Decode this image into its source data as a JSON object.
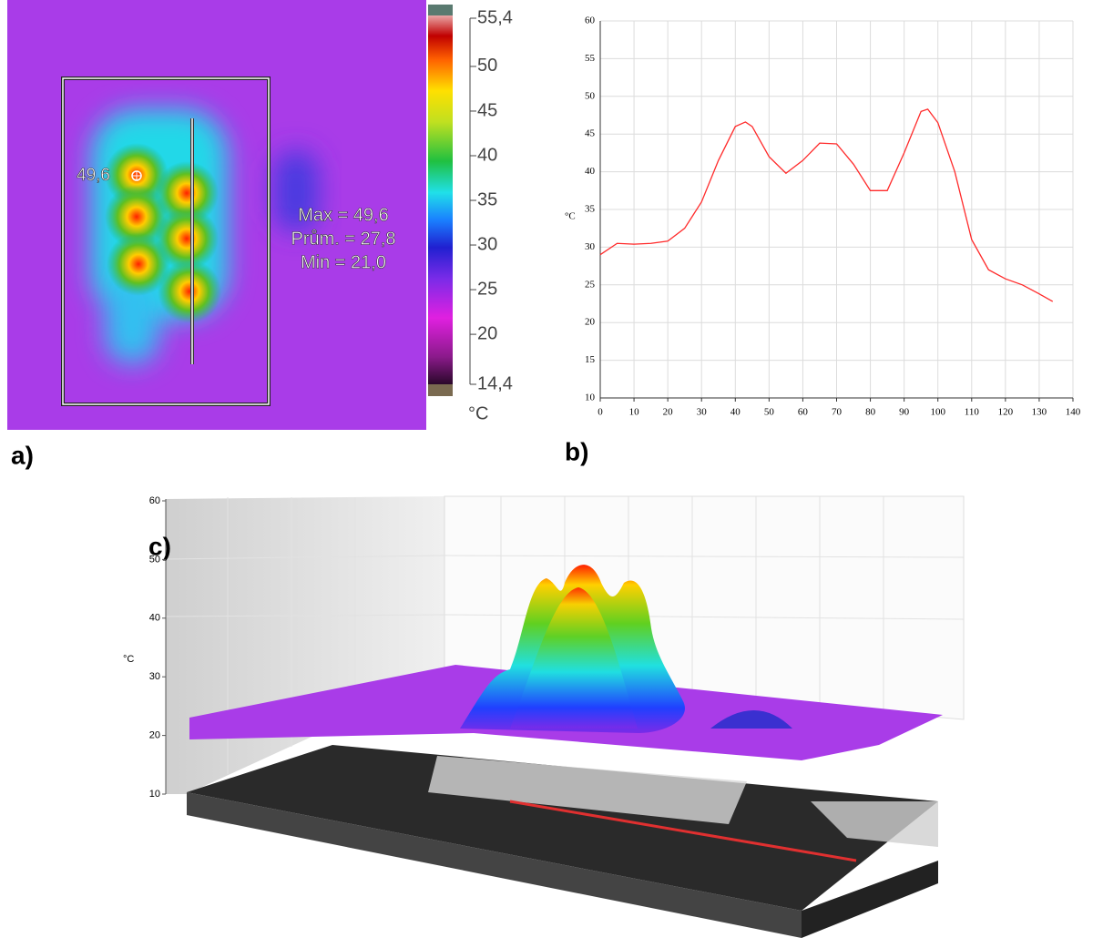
{
  "chart_data": [
    {
      "type": "thermal",
      "panel_label": "a)",
      "colorbar": {
        "lim": [
          14.4,
          55.4
        ],
        "unit": "°C",
        "ticks": [
          {
            "value": 55.4,
            "label": "55,4"
          },
          50,
          45,
          40,
          35,
          30,
          25,
          20,
          {
            "value": 14.4,
            "label": "14,4"
          }
        ]
      },
      "spot_label": "49,6",
      "annotations": [
        "Max = 49,6",
        "Prům. = 27,8",
        "Min = 21,0"
      ]
    },
    {
      "type": "line",
      "panel_label": "b)",
      "ylabel": "°C",
      "color": "#ff2a2a",
      "grid": true,
      "x": [
        0,
        5,
        10,
        15,
        20,
        25,
        30,
        35,
        40,
        43,
        45,
        50,
        55,
        60,
        65,
        70,
        75,
        80,
        85,
        90,
        95,
        97,
        100,
        105,
        110,
        115,
        120,
        125,
        130,
        134
      ],
      "values": [
        29,
        30.5,
        30.4,
        30.5,
        30.8,
        32.5,
        36,
        41.5,
        46,
        46.6,
        46,
        42,
        39.8,
        41.5,
        43.8,
        43.7,
        41,
        37.5,
        37.5,
        42.5,
        48,
        48.3,
        46.5,
        40,
        31,
        27,
        25.8,
        25,
        23.8,
        22.8
      ],
      "xlim": [
        0,
        140
      ],
      "xticks": [
        0,
        10,
        20,
        30,
        40,
        50,
        60,
        70,
        80,
        90,
        100,
        110,
        120,
        130,
        140
      ],
      "ylim": [
        10,
        60
      ],
      "yticks": [
        10,
        15,
        20,
        25,
        30,
        35,
        40,
        45,
        50,
        55,
        60
      ]
    },
    {
      "type": "surface3d",
      "panel_label": "c)",
      "zlabel": "°C",
      "zlim": [
        10,
        60
      ],
      "zticks": [
        10,
        20,
        30,
        40,
        50,
        60
      ]
    }
  ]
}
